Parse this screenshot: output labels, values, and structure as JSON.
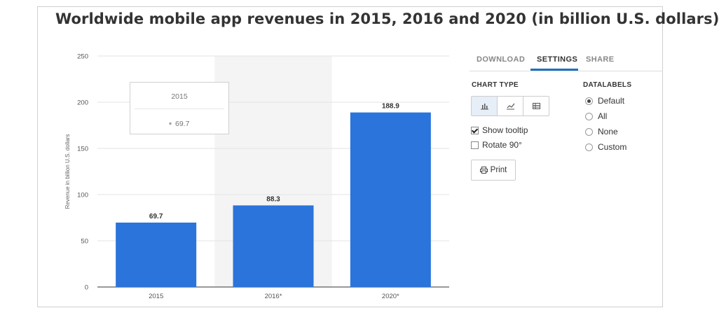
{
  "title": "Worldwide mobile app revenues in 2015, 2016 and 2020 (in billion U.S. dollars)",
  "chart_data": {
    "type": "bar",
    "categories": [
      "2015",
      "2016*",
      "2020*"
    ],
    "values": [
      69.7,
      88.3,
      188.9
    ],
    "data_labels": [
      "69.7",
      "88.3",
      "188.9"
    ],
    "ylabel": "Revenue in billion U.S. dollars",
    "xlabel": "",
    "ylim": [
      0,
      250
    ],
    "yticks": [
      "0",
      "50",
      "100",
      "150",
      "200",
      "250"
    ],
    "ytick_values": [
      0,
      50,
      100,
      150,
      200,
      250
    ],
    "grid": true,
    "bar_color": "#2a74db",
    "highlighted_category": "2016*",
    "tooltip": {
      "category": "2015",
      "value": "69.7"
    }
  },
  "panel": {
    "tabs": [
      {
        "label": "DOWNLOAD",
        "active": false
      },
      {
        "label": "SETTINGS",
        "active": true
      },
      {
        "label": "SHARE",
        "active": false
      }
    ],
    "chart_type_title": "CHART TYPE",
    "chart_type_icons": [
      "bar-chart-icon",
      "line-chart-icon",
      "table-icon"
    ],
    "show_tooltip_label": "Show tooltip",
    "show_tooltip_checked": true,
    "rotate_label": "Rotate 90°",
    "rotate_checked": false,
    "print_label": "Print",
    "datalabels_title": "DATALABELS",
    "datalabels_options": [
      "Default",
      "All",
      "None",
      "Custom"
    ],
    "datalabels_selected": "Default",
    "accent": "#1f6fbf"
  }
}
